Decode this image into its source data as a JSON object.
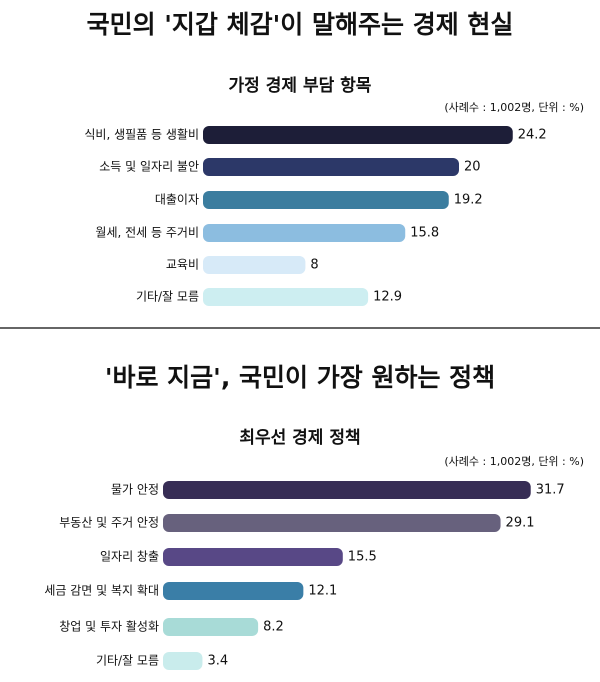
{
  "chart_data": [
    {
      "type": "bar",
      "title": "국민의 '지갑 체감'이 말해주는 경제 현실",
      "subtitle": "가정 경제 부담 항목",
      "note": "(사례수 : 1,002명, 단위 : %)",
      "categories": [
        "식비, 생필품 등 생활비",
        "소득 및 일자리 불안",
        "대출이자",
        "월세, 전세 등 주거비",
        "교육비",
        "기타/잘 모름"
      ],
      "values": [
        24.2,
        20,
        19.2,
        15.8,
        8,
        12.9
      ],
      "colors": [
        "#1d1e38",
        "#2c3868",
        "#3b7d9f",
        "#8cbde0",
        "#d7eaf8",
        "#cdeef1"
      ]
    },
    {
      "type": "bar",
      "title": "'바로 지금', 국민이 가장 원하는 정책",
      "subtitle": "최우선 경제 정책",
      "note": "(사례수 : 1,002명, 단위 : %)",
      "categories": [
        "물가 안정",
        "부동산 및 주거 안정",
        "일자리 창출",
        "세금 감면 및 복지 확대",
        "창업 및 투자 활성화",
        "기타/잘 모름"
      ],
      "values": [
        31.7,
        29.1,
        15.5,
        12.1,
        8.2,
        3.4
      ],
      "colors": [
        "#372d55",
        "#67617d",
        "#584886",
        "#3a7ea7",
        "#a8dbd7",
        "#c9ecec"
      ]
    }
  ]
}
